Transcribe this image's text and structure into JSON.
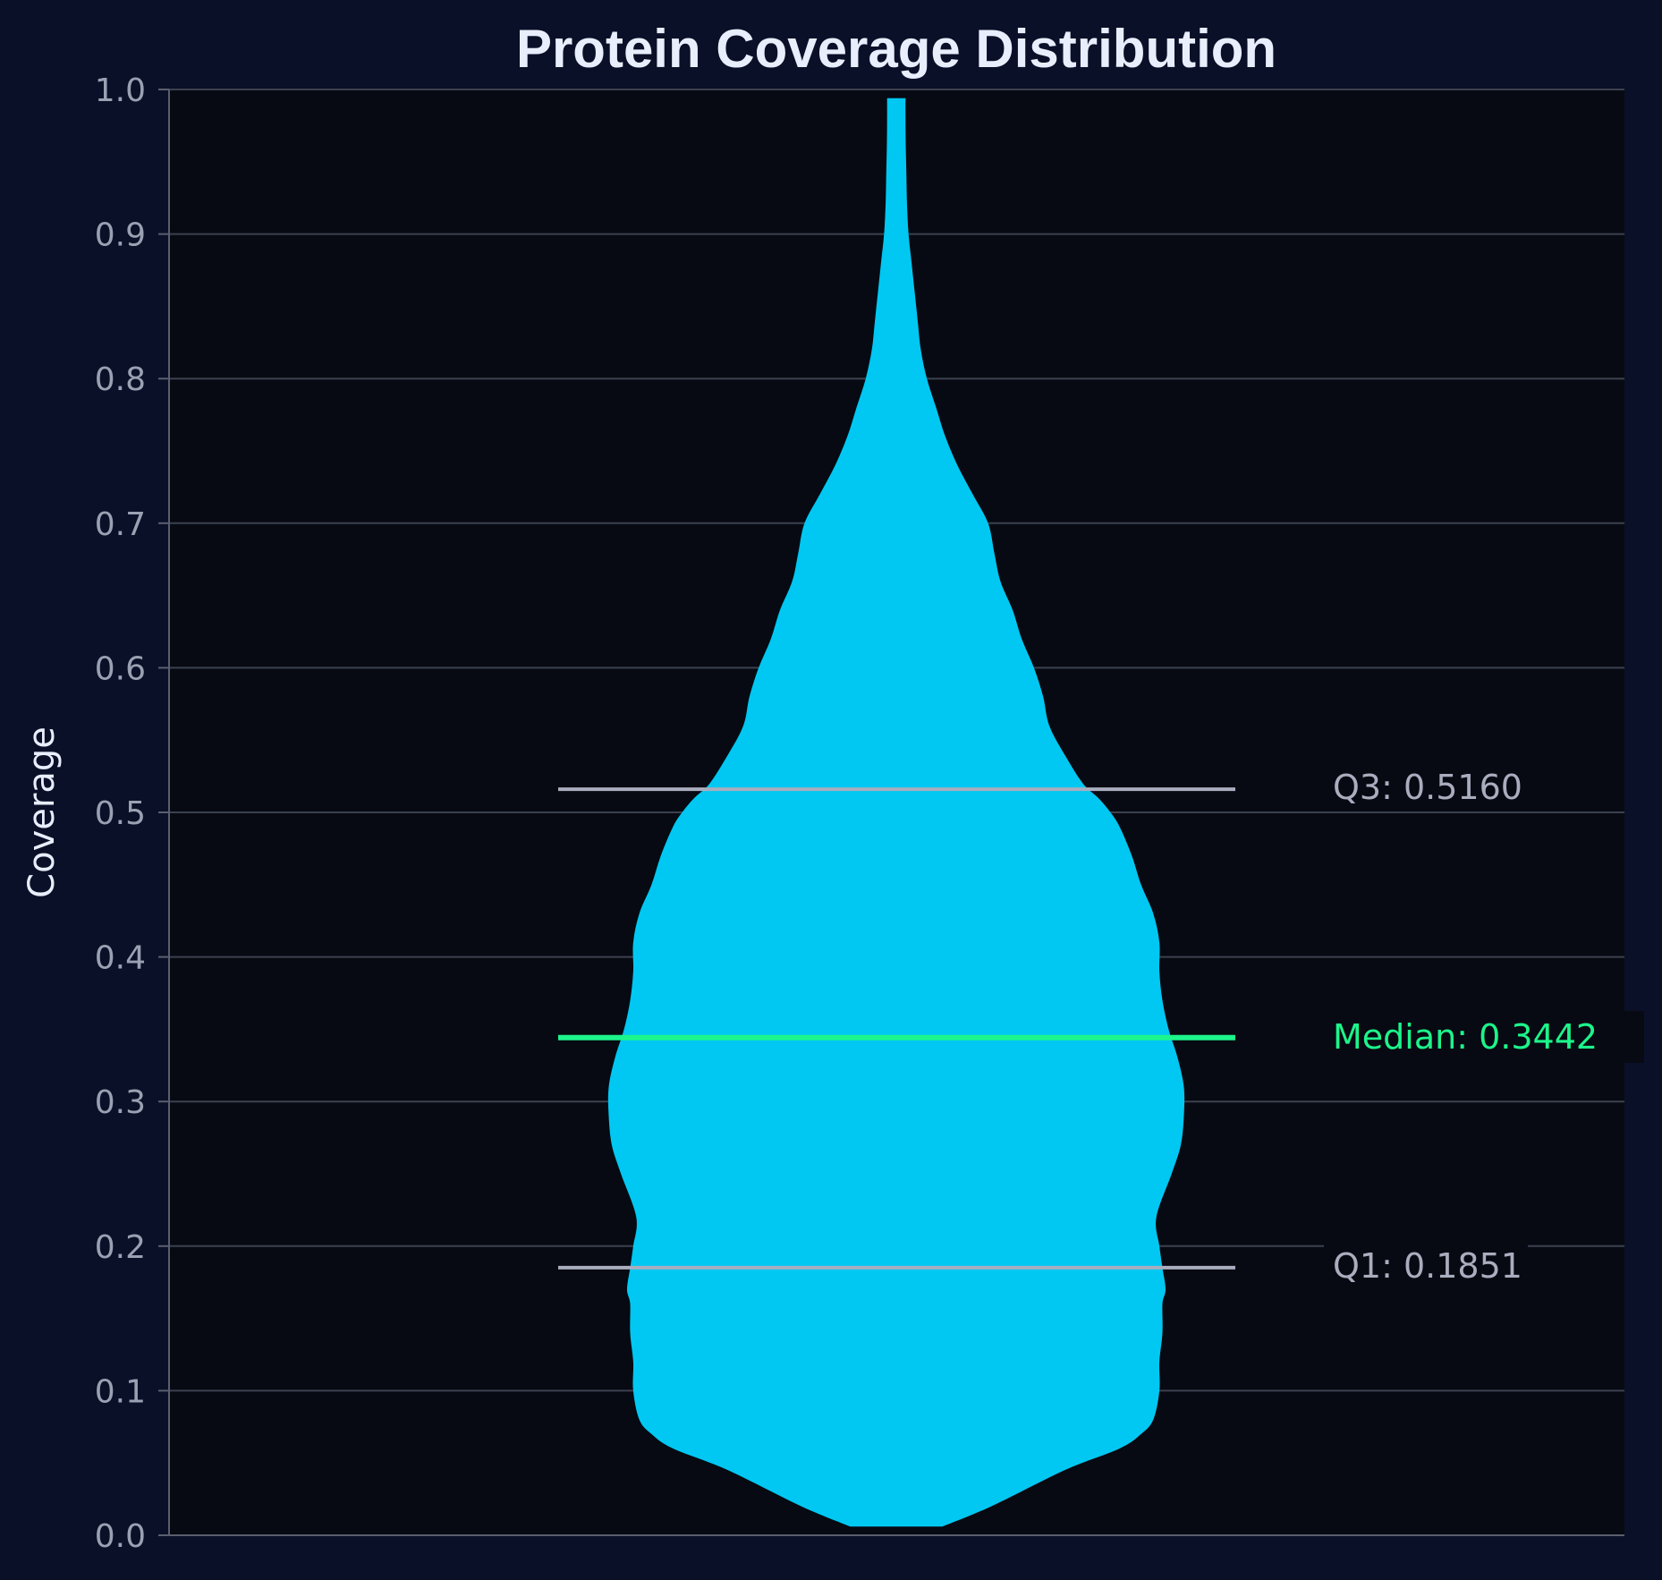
{
  "chart_data": {
    "type": "violin",
    "title": "Protein Coverage Distribution",
    "xlabel": "",
    "ylabel": "Coverage",
    "ylim": [
      0,
      1
    ],
    "yticks": [
      "0.0",
      "0.1",
      "0.2",
      "0.3",
      "0.4",
      "0.5",
      "0.6",
      "0.7",
      "0.8",
      "0.9",
      "1.0"
    ],
    "grid": true,
    "density": {
      "y": [
        0.006,
        0.02,
        0.045,
        0.06,
        0.07,
        0.08,
        0.1,
        0.12,
        0.14,
        0.16,
        0.17,
        0.185,
        0.2,
        0.22,
        0.25,
        0.27,
        0.29,
        0.31,
        0.33,
        0.35,
        0.37,
        0.39,
        0.41,
        0.43,
        0.45,
        0.47,
        0.49,
        0.5,
        0.51,
        0.52,
        0.54,
        0.56,
        0.58,
        0.6,
        0.62,
        0.64,
        0.66,
        0.68,
        0.7,
        0.72,
        0.74,
        0.76,
        0.78,
        0.8,
        0.82,
        0.84,
        0.86,
        0.88,
        0.9,
        0.92,
        0.94,
        0.96,
        0.98,
        0.994
      ],
      "width": [
        0.15,
        0.31,
        0.55,
        0.73,
        0.8,
        0.84,
        0.86,
        0.86,
        0.87,
        0.87,
        0.88,
        0.87,
        0.86,
        0.85,
        0.9,
        0.93,
        0.94,
        0.94,
        0.92,
        0.89,
        0.87,
        0.86,
        0.86,
        0.84,
        0.8,
        0.77,
        0.73,
        0.7,
        0.66,
        0.61,
        0.55,
        0.5,
        0.48,
        0.45,
        0.41,
        0.38,
        0.34,
        0.32,
        0.3,
        0.25,
        0.2,
        0.16,
        0.13,
        0.1,
        0.08,
        0.07,
        0.06,
        0.05,
        0.04,
        0.035,
        0.033,
        0.031,
        0.03,
        0.03
      ]
    },
    "quartiles": {
      "q1": 0.1851,
      "median": 0.3442,
      "q3": 0.516
    },
    "annotations": {
      "q3": "Q3: 0.5160",
      "median": "Median: 0.3442",
      "q1": "Q1: 0.1851"
    },
    "colors": {
      "background": "#0b1029",
      "plot_background": "#070a12",
      "violin": "#00c8f2",
      "median": "#1cf58b",
      "quartile": "#a9adbe",
      "grid": "#3c4150",
      "text": "#e8eefb",
      "tick_text": "#9aa1b2"
    }
  }
}
